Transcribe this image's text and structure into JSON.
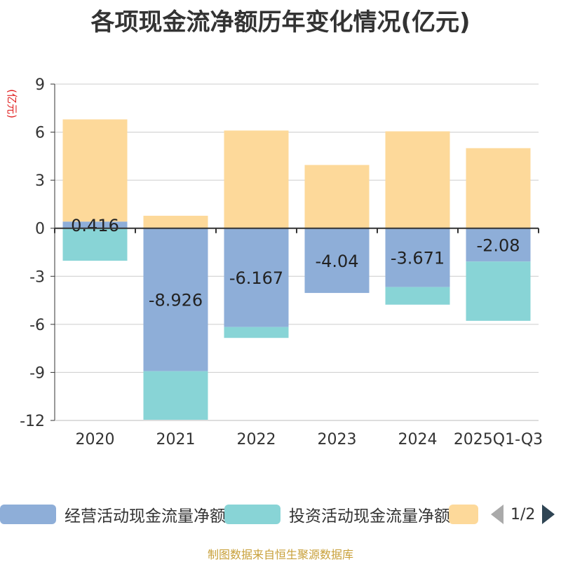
{
  "chart_data": {
    "type": "bar",
    "stacked": true,
    "title": "各项现金流净额历年变化情况(亿元)",
    "ylabel": "(亿元)",
    "xlabel": "",
    "categories": [
      "2020",
      "2021",
      "2022",
      "2023",
      "2024",
      "2025Q1-Q3"
    ],
    "ylim": [
      -12,
      9
    ],
    "yticks": [
      9,
      6,
      3,
      0,
      -3,
      -6,
      -9,
      -12
    ],
    "grid": true,
    "legend_position": "bottom",
    "series": [
      {
        "name": "经营活动现金流量净额",
        "color": "#8eaed8",
        "values": [
          0.416,
          -8.926,
          -6.167,
          -4.04,
          -3.671,
          -2.08
        ],
        "labels": [
          "0.416",
          "-8.926",
          "-6.167",
          "-4.04",
          "-3.671",
          "-2.08"
        ]
      },
      {
        "name": "投资活动现金流量净额",
        "color": "#88d4d6",
        "values": [
          -2.03,
          -3.03,
          -0.68,
          0,
          -1.1,
          -3.7
        ]
      },
      {
        "name": "",
        "color": "#fdd99a",
        "values": [
          6.38,
          0.78,
          6.1,
          3.95,
          6.05,
          5.0
        ]
      }
    ]
  },
  "legend": {
    "items": [
      {
        "label": "经营活动现金流量净额",
        "color": "#8eaed8"
      },
      {
        "label": "投资活动现金流量净额",
        "color": "#88d4d6"
      },
      {
        "label": "",
        "color": "#fdd99a"
      }
    ],
    "page": "1/2"
  },
  "source": "制图数据来自恒生聚源数据库"
}
